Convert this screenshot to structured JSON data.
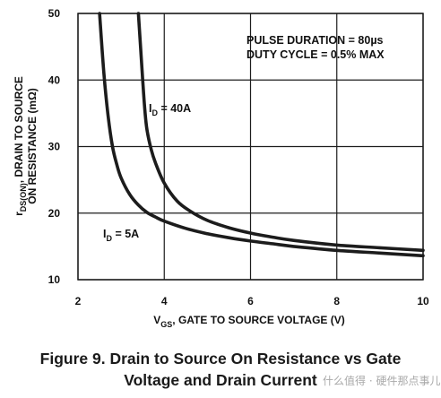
{
  "chart_data": {
    "type": "line",
    "xlim": [
      2,
      10
    ],
    "ylim": [
      10,
      50
    ],
    "x_ticks": [
      "2",
      "4",
      "6",
      "8",
      "10"
    ],
    "y_ticks": [
      "10",
      "20",
      "30",
      "40",
      "50"
    ],
    "grid": true,
    "xlabel": {
      "v": "V",
      "sub": "GS",
      "rest": ", GATE TO SOURCE VOLTAGE (V)"
    },
    "ylabel": {
      "line1_pre": "r",
      "line1_sub": "DS(ON)",
      "line1_rest": ", DRAIN TO SOURCE",
      "line2": "ON RESISTANCE (mΩ)"
    },
    "notes": [
      "PULSE DURATION = 80µs",
      "DUTY CYCLE = 0.5% MAX"
    ],
    "series": [
      {
        "name": "I_D = 5A",
        "x": [
          2.5,
          2.6,
          2.7,
          2.8,
          2.9,
          3.0,
          3.2,
          3.4,
          3.6,
          3.8,
          4.0,
          4.5,
          5.0,
          5.5,
          6.0,
          6.5,
          7.0,
          8.0,
          9.0,
          10.0
        ],
        "y": [
          50,
          41,
          34.5,
          30,
          27.3,
          25.3,
          22.8,
          21.2,
          20.1,
          19.4,
          18.8,
          17.7,
          16.9,
          16.3,
          15.8,
          15.4,
          15.0,
          14.4,
          14.0,
          13.6
        ]
      },
      {
        "name": "I_D = 40A",
        "x": [
          3.4,
          3.45,
          3.5,
          3.55,
          3.6,
          3.7,
          3.8,
          4.0,
          4.3,
          4.6,
          5.0,
          5.5,
          6.0,
          6.5,
          7.0,
          8.0,
          9.0,
          10.0
        ],
        "y": [
          50,
          45,
          40,
          35.5,
          32.5,
          29.5,
          27.5,
          24.5,
          21.8,
          20.3,
          18.9,
          17.8,
          17.0,
          16.4,
          15.9,
          15.2,
          14.8,
          14.4
        ]
      }
    ],
    "series_labels": [
      {
        "pre": "I",
        "sub": "D",
        "rest": " = 40A"
      },
      {
        "pre": "I",
        "sub": "D",
        "rest": " = 5A"
      }
    ]
  },
  "caption": {
    "line1": "Figure 9.  Drain to Source On Resistance vs Gate",
    "line2": "Voltage and Drain Current"
  },
  "watermark": "什么值得 · 硬件那点事儿",
  "colors": {
    "line": "#1c1c1c",
    "grid": "#1c1c1c",
    "caption": "#1a1a1a"
  }
}
